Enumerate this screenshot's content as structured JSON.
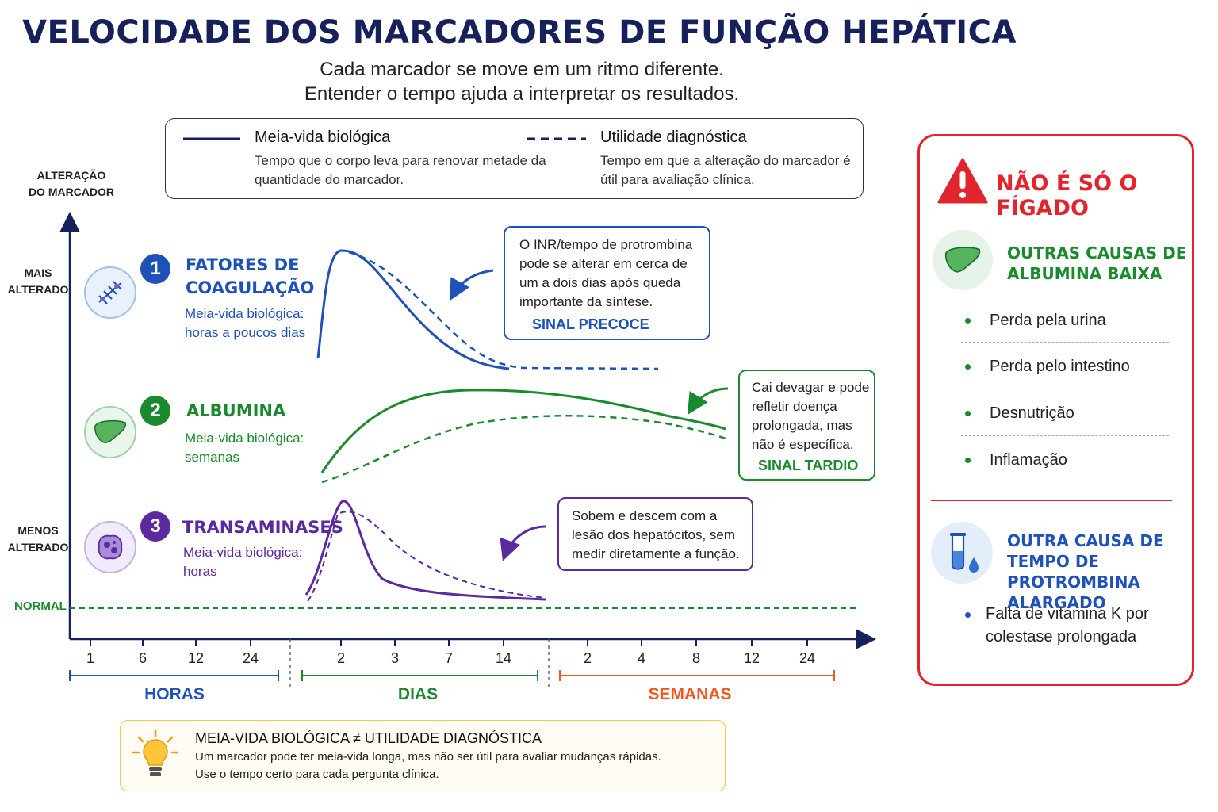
{
  "title": "VELOCIDADE DOS MARCADORES DE FUNÇÃO HEPÁTICA",
  "subtitle_lines": [
    "Cada marcador se move em um ritmo diferente.",
    "Entender o tempo ajuda a interpretar os resultados."
  ],
  "legend": {
    "solid": {
      "title": "Meia-vida biológica",
      "desc": "Tempo que o corpo leva para renovar metade da quantidade do marcador."
    },
    "dashed": {
      "title": "Utilidade diagnóstica",
      "desc": "Tempo em que a alteração do marcador é útil para avaliação clínica."
    }
  },
  "axis": {
    "y_title": [
      "ALTERAÇÃO",
      "DO MARCADOR"
    ],
    "y_high": [
      "MAIS",
      "ALTERADO"
    ],
    "y_low": [
      "MENOS",
      "ALTERADO"
    ],
    "normal": "NORMAL",
    "ticks_hours": [
      "1",
      "6",
      "12",
      "24"
    ],
    "ticks_days": [
      "2",
      "3",
      "7",
      "14"
    ],
    "ticks_weeks": [
      "2",
      "4",
      "8",
      "12",
      "24"
    ],
    "bands": {
      "hours": "HORAS",
      "days": "DIAS",
      "weeks": "SEMANAS"
    }
  },
  "markers": [
    {
      "number": "1",
      "name": [
        "FATORES DE",
        "COAGULAÇÃO"
      ],
      "halflife": [
        "Meia-vida biológica:",
        "horas a poucos dias"
      ],
      "icon": "coagulation-factor-icon",
      "color": "#1f52b8"
    },
    {
      "number": "2",
      "name": [
        "ALBUMINA"
      ],
      "halflife": [
        "Meia-vida biológica:",
        "semanas"
      ],
      "icon": "liver-icon",
      "color": "#1b8a2e"
    },
    {
      "number": "3",
      "name": [
        "TRANSAMINASES"
      ],
      "halflife": [
        "Meia-vida biológica:",
        "horas"
      ],
      "icon": "hepatocyte-icon",
      "color": "#5b2a9e"
    }
  ],
  "callouts": [
    {
      "lines": [
        "O INR/tempo de protrombina",
        "pode se alterar em cerca de",
        "um a dois dias após queda",
        "importante da síntese."
      ],
      "tag": "SINAL PRECOCE"
    },
    {
      "lines": [
        "Cai devagar e pode",
        "refletir doença",
        "prolongada, mas",
        "não é específica."
      ],
      "tag": "SINAL TARDIO"
    },
    {
      "lines": [
        "Sobem e descem com a",
        "lesão dos hepatócitos, sem",
        "medir diretamente a função."
      ]
    }
  ],
  "tip": {
    "title": "MEIA-VIDA BIOLÓGICA ≠ UTILIDADE DIAGNÓSTICA",
    "lines": [
      "Um marcador pode ter meia-vida longa, mas não ser útil para avaliar mudanças rápidas.",
      "Use o tempo certo para cada pergunta clínica."
    ]
  },
  "side_panel": {
    "title": "NÃO É SÓ O FÍGADO",
    "albumin": {
      "title": [
        "OUTRAS CAUSAS DE",
        "ALBUMINA BAIXA"
      ],
      "items": [
        "Perda pela urina",
        "Perda pelo intestino",
        "Desnutrição",
        "Inflamação"
      ]
    },
    "pt": {
      "title": [
        "OUTRA CAUSA DE",
        "TEMPO DE PROTROMBINA",
        "ALARGADO"
      ],
      "item": [
        "Falta de vitamina K por",
        "colestase prolongada"
      ]
    }
  },
  "colors": {
    "navy": "#16205a",
    "blue": "#1f52b8",
    "green": "#1b8a2e",
    "purple": "#5b2a9e",
    "red": "#e0262c",
    "orange": "#f05a22"
  }
}
